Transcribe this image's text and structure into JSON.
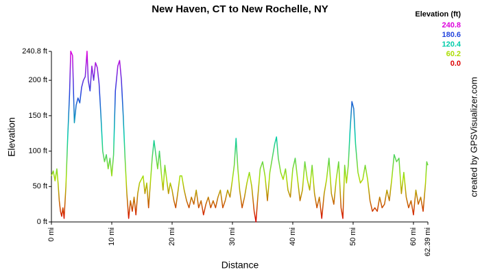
{
  "chart_data": {
    "type": "line",
    "title": "New Haven, CT to New Rochelle, NY",
    "x_label": "Distance",
    "y_label": "Elevation",
    "credit": "created by GPSVisualizer.com",
    "legend_title": "Elevation (ft)",
    "color_scale": [
      {
        "value": 240.8,
        "color": "#dd00dd"
      },
      {
        "value": 180.6,
        "color": "#2244dd"
      },
      {
        "value": 120.4,
        "color": "#00ccaa"
      },
      {
        "value": 60.2,
        "color": "#aadd00"
      },
      {
        "value": 0,
        "label": "0.0",
        "color": "#dd0000"
      }
    ],
    "xlim": [
      0,
      62.39
    ],
    "ylim": [
      0,
      240.8
    ],
    "xticks": [
      {
        "value": 0,
        "label": "0 mi"
      },
      {
        "value": 10,
        "label": "10 mi"
      },
      {
        "value": 20,
        "label": "20 mi"
      },
      {
        "value": 30,
        "label": "30 mi"
      },
      {
        "value": 40,
        "label": "40 mi"
      },
      {
        "value": 50,
        "label": "50 mi"
      },
      {
        "value": 60,
        "label": "60 mi"
      },
      {
        "value": 62.39,
        "label": "62.39 mi"
      }
    ],
    "yticks": [
      {
        "value": 0,
        "label": "0 ft"
      },
      {
        "value": 50,
        "label": "50 ft"
      },
      {
        "value": 100,
        "label": "100 ft"
      },
      {
        "value": 150,
        "label": "150 ft"
      },
      {
        "value": 200,
        "label": "200 ft"
      },
      {
        "value": 240.8,
        "label": "240.8 ft"
      }
    ],
    "x": [
      0,
      0.3,
      0.6,
      0.9,
      1.1,
      1.3,
      1.5,
      1.7,
      1.9,
      2.1,
      2.4,
      2.7,
      3.0,
      3.2,
      3.5,
      3.8,
      4.1,
      4.4,
      4.7,
      5.0,
      5.3,
      5.6,
      5.9,
      6.1,
      6.4,
      6.7,
      7.0,
      7.3,
      7.6,
      7.9,
      8.2,
      8.5,
      8.8,
      9.1,
      9.4,
      9.7,
      10.0,
      10.3,
      10.6,
      11.0,
      11.3,
      11.6,
      11.9,
      12.2,
      12.5,
      12.8,
      13.1,
      13.4,
      13.7,
      14.0,
      14.3,
      14.6,
      14.9,
      15.2,
      15.5,
      15.8,
      16.1,
      16.4,
      16.7,
      17.0,
      17.3,
      17.6,
      17.9,
      18.2,
      18.5,
      18.8,
      19.1,
      19.4,
      19.7,
      20.0,
      20.3,
      20.6,
      21.0,
      21.3,
      21.6,
      22.0,
      22.4,
      22.8,
      23.2,
      23.6,
      24.0,
      24.4,
      24.8,
      25.2,
      25.6,
      26.0,
      26.4,
      26.8,
      27.2,
      27.6,
      28.0,
      28.4,
      28.8,
      29.2,
      29.6,
      30.0,
      30.3,
      30.6,
      30.9,
      31.2,
      31.6,
      32.0,
      32.4,
      32.8,
      33.2,
      33.6,
      33.9,
      34.2,
      34.6,
      35.0,
      35.4,
      35.8,
      36.2,
      36.6,
      37.0,
      37.3,
      37.6,
      38.0,
      38.4,
      38.8,
      39.2,
      39.6,
      40.0,
      40.4,
      40.8,
      41.2,
      41.6,
      42.0,
      42.4,
      42.8,
      43.2,
      43.6,
      44.0,
      44.4,
      44.8,
      45.2,
      45.6,
      46.0,
      46.4,
      46.8,
      47.2,
      47.6,
      48.0,
      48.3,
      48.6,
      48.9,
      49.2,
      49.5,
      49.8,
      50.1,
      50.4,
      50.8,
      51.2,
      51.6,
      52.0,
      52.4,
      52.8,
      53.2,
      53.6,
      54.0,
      54.4,
      54.8,
      55.2,
      55.6,
      56.0,
      56.4,
      56.8,
      57.2,
      57.6,
      58.0,
      58.4,
      58.8,
      59.2,
      59.6,
      60.0,
      60.4,
      60.8,
      61.2,
      61.6,
      62.0,
      62.2,
      62.39
    ],
    "values": [
      65,
      72,
      58,
      75,
      55,
      30,
      15,
      8,
      20,
      5,
      50,
      120,
      180,
      241,
      235,
      140,
      165,
      175,
      168,
      190,
      200,
      205,
      241,
      200,
      185,
      220,
      200,
      225,
      218,
      195,
      150,
      100,
      85,
      95,
      75,
      90,
      65,
      95,
      185,
      220,
      228,
      200,
      150,
      90,
      40,
      5,
      30,
      15,
      35,
      10,
      40,
      55,
      60,
      65,
      40,
      55,
      20,
      55,
      90,
      115,
      95,
      75,
      100,
      70,
      45,
      80,
      60,
      40,
      55,
      45,
      30,
      20,
      45,
      65,
      65,
      45,
      30,
      20,
      35,
      25,
      45,
      20,
      30,
      10,
      25,
      35,
      20,
      30,
      20,
      35,
      45,
      20,
      30,
      45,
      35,
      60,
      80,
      118,
      75,
      45,
      20,
      35,
      55,
      70,
      50,
      15,
      0,
      35,
      75,
      85,
      65,
      30,
      70,
      90,
      110,
      120,
      90,
      70,
      60,
      75,
      45,
      35,
      75,
      90,
      60,
      30,
      45,
      85,
      60,
      45,
      80,
      40,
      20,
      35,
      5,
      40,
      60,
      90,
      40,
      25,
      60,
      85,
      20,
      5,
      80,
      55,
      80,
      130,
      170,
      160,
      110,
      70,
      55,
      60,
      80,
      60,
      30,
      15,
      20,
      15,
      35,
      20,
      25,
      45,
      30,
      60,
      95,
      85,
      90,
      40,
      70,
      35,
      20,
      30,
      10,
      45,
      25,
      35,
      15,
      55,
      85,
      80
    ]
  }
}
